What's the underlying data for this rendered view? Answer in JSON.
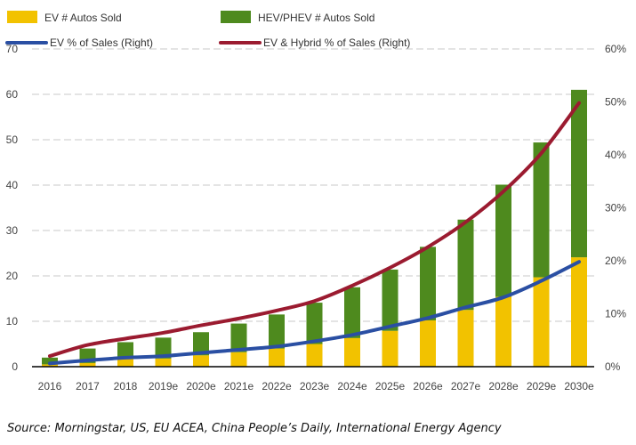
{
  "chart_data": {
    "type": "bar",
    "stacked": true,
    "categories": [
      "2016",
      "2017",
      "2018",
      "2019e",
      "2020e",
      "2021e",
      "2022e",
      "2023e",
      "2024e",
      "2025e",
      "2026e",
      "2027e",
      "2028e",
      "2029e",
      "2030e"
    ],
    "series": [
      {
        "name": "EV # Autos Sold",
        "type": "bar",
        "axis": "left",
        "color": "#f2c200",
        "values": [
          0.5,
          0.8,
          1.7,
          1.8,
          2.5,
          3.2,
          4.0,
          5.0,
          6.3,
          7.9,
          10.2,
          12.5,
          15.4,
          19.7,
          24.1
        ]
      },
      {
        "name": "HEV/PHEV # Autos Sold",
        "type": "bar",
        "axis": "left",
        "color": "#4e8a1e",
        "values": [
          1.5,
          3.2,
          3.7,
          4.6,
          5.1,
          6.3,
          7.5,
          9.1,
          11.2,
          13.5,
          16.2,
          19.9,
          24.7,
          29.7,
          36.9
        ]
      },
      {
        "name": "EV % of Sales (Right)",
        "type": "line",
        "axis": "right",
        "color": "#2a4fa3",
        "values": [
          0.6,
          1.2,
          1.7,
          2.0,
          2.6,
          3.2,
          3.8,
          4.8,
          6.0,
          7.6,
          9.2,
          11.2,
          13.1,
          16.2,
          19.8
        ]
      },
      {
        "name": "EV & Hybrid % of Sales (Right)",
        "type": "line",
        "axis": "right",
        "color": "#9b1b30",
        "values": [
          2.0,
          4.1,
          5.3,
          6.4,
          7.8,
          9.1,
          10.6,
          12.4,
          15.3,
          18.7,
          22.6,
          27.3,
          33.1,
          40.3,
          49.8
        ]
      }
    ],
    "ylim": [
      0,
      70
    ],
    "yticks": [
      "0",
      "10",
      "20",
      "30",
      "40",
      "50",
      "60",
      "70"
    ],
    "y2lim": [
      0,
      60
    ],
    "y2ticks": [
      "0%",
      "10%",
      "20%",
      "30%",
      "40%",
      "50%",
      "60%"
    ],
    "grid": true,
    "legend_placement": "top"
  },
  "source": "Source: Morningstar, US, EU ACEA, China People’s Daily, International Energy Agency"
}
